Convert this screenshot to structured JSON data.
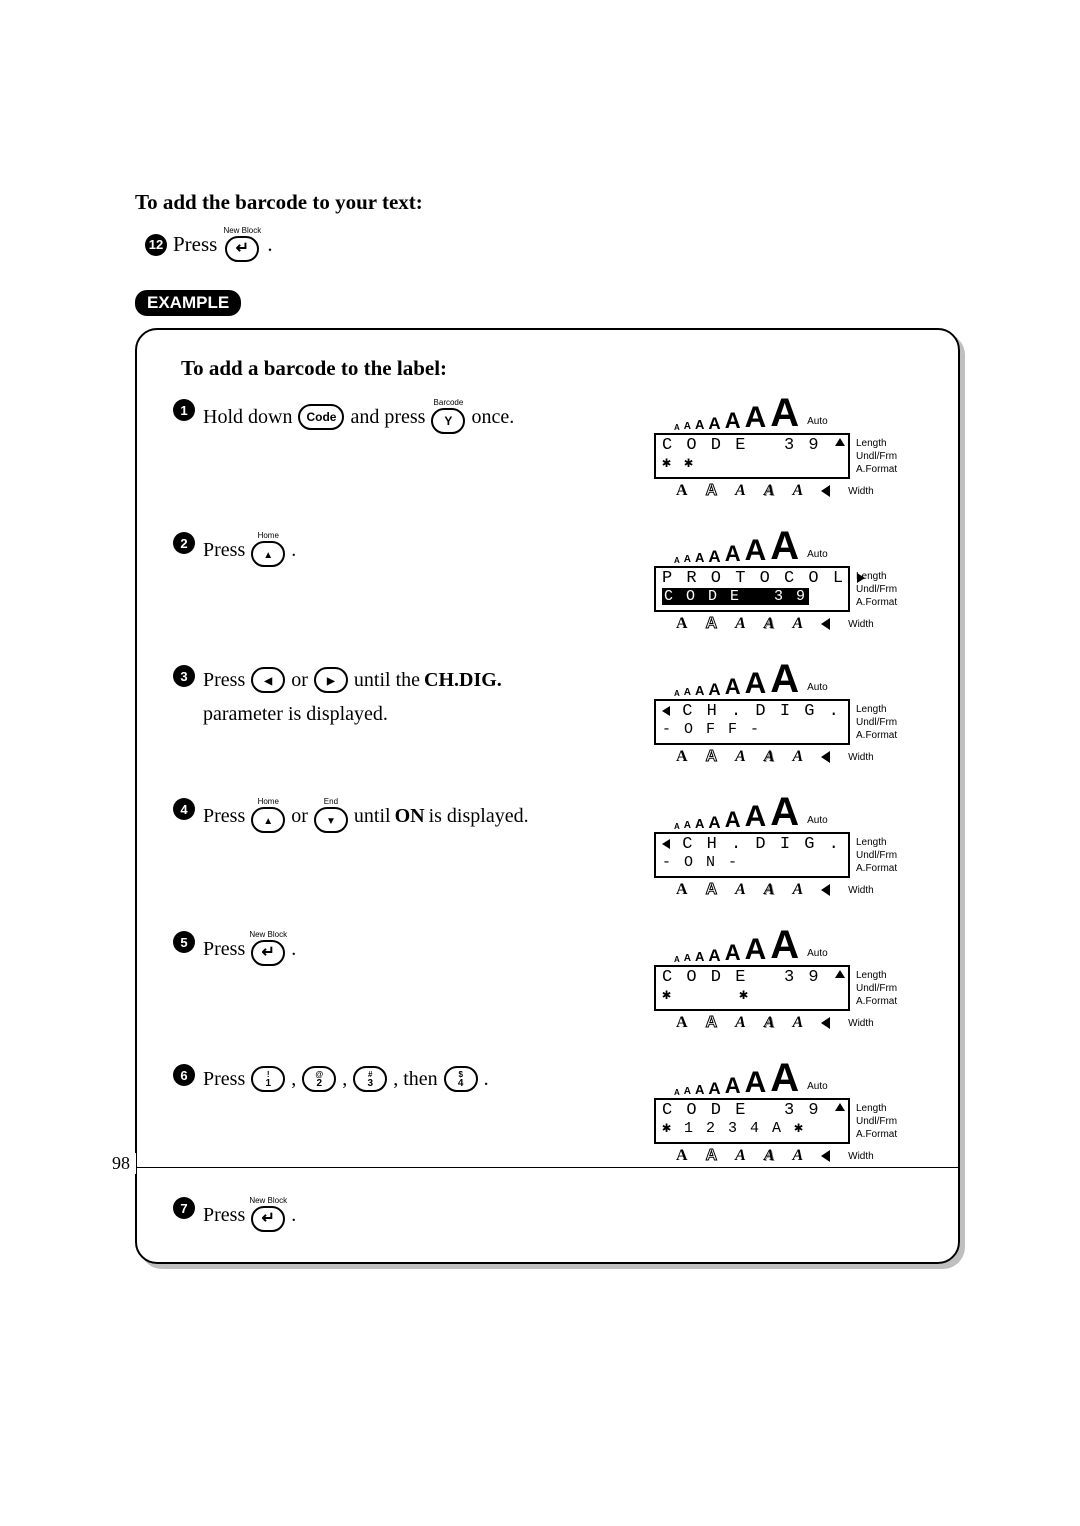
{
  "title": "To add the barcode to your text:",
  "topstep": {
    "num": "12",
    "verb": "Press",
    "keyTop": "New Block"
  },
  "exampleLabel": "EXAMPLE",
  "box": {
    "title": "To add a barcode to the label:",
    "steps": [
      {
        "num": "1",
        "pre": "Hold down ",
        "key1": "Code",
        "mid": " and press ",
        "key2top": "Barcode",
        "key2": "Y",
        "post": " once."
      },
      {
        "num": "2",
        "pre": "Press ",
        "keyTop": "Home",
        "keyGlyph": "up",
        "post": "."
      },
      {
        "num": "3",
        "pre": "Press ",
        "k1glyph": "lt",
        "mid": " or ",
        "k2glyph": "rt",
        "post1": " until the ",
        "bold": "CH.DIG.",
        "post2": " parameter is displayed."
      },
      {
        "num": "4",
        "pre": "Press ",
        "k1top": "Home",
        "k1glyph": "up",
        "mid": " or ",
        "k2top": "End",
        "k2glyph": "dn",
        "post1": " until ",
        "bold": "ON",
        "post2": " is displayed."
      },
      {
        "num": "5",
        "pre": "Press ",
        "keyTop": "New Block",
        "keyGlyph": "enter",
        "post": "."
      },
      {
        "num": "6",
        "pre": "Press ",
        "keys": [
          "!:1",
          "@:2",
          "#:3"
        ],
        "then": ", then ",
        "lastkey": "$:4",
        "post": "."
      },
      {
        "num": "7",
        "pre": "Press ",
        "keyTop": "New Block",
        "keyGlyph": "enter",
        "post": "."
      }
    ],
    "displays": [
      {
        "l1": "C O D E   3 9",
        "l2": "✱ ✱",
        "showUp": true
      },
      {
        "l1": "P R O T O C O L",
        "l2": "C O D E   3 9",
        "showRt": true,
        "invL2": true
      },
      {
        "l1": "C H . D I G .",
        "l2": "O F F",
        "showLt": true,
        "dashL2": true
      },
      {
        "l1": "C H . D I G .",
        "l2": "O N",
        "showLt": true,
        "dashL2": true
      },
      {
        "l1": "C O D E   3 9",
        "l2": "✱      ✱",
        "showUp": true
      },
      {
        "l1": "C O D E   3 9",
        "l2": "✱ 1 2 3 4 A ✱",
        "showUp": true
      }
    ],
    "rlabels": [
      "Length",
      "Undl/Frm",
      "A.Format"
    ],
    "autoTop": "Auto",
    "widthLabel": "Width",
    "sizeLetters": [
      "A",
      "A",
      "A",
      "A",
      "A",
      "A",
      "A"
    ],
    "sizeFs": [
      8,
      10,
      13,
      17,
      22,
      30,
      40
    ],
    "styleRow": [
      "A",
      "A",
      "A",
      "A",
      "A"
    ]
  },
  "pageNumber": "98"
}
